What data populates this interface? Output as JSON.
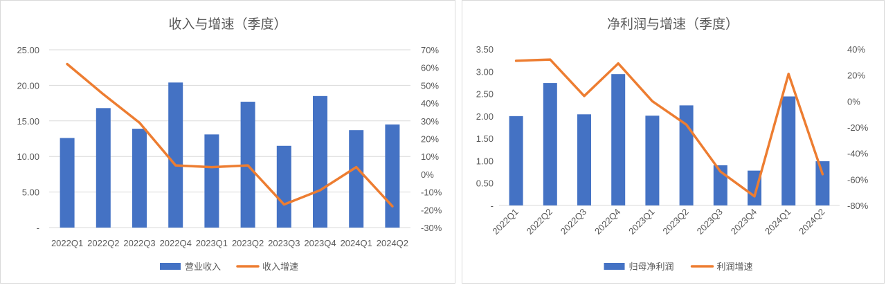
{
  "chart_data": [
    {
      "type": "bar",
      "title": "收入与增速（季度）",
      "categories": [
        "2022Q1",
        "2022Q2",
        "2022Q3",
        "2022Q4",
        "2023Q1",
        "2023Q2",
        "2023Q3",
        "2023Q4",
        "2024Q1",
        "2024Q2"
      ],
      "series": [
        {
          "name": "营业收入",
          "type": "bar",
          "axis": "left",
          "color": "#4472C4",
          "values": [
            12.6,
            16.8,
            13.9,
            20.4,
            13.1,
            17.7,
            11.5,
            18.5,
            13.7,
            14.5
          ]
        },
        {
          "name": "收入增速",
          "type": "line",
          "axis": "right",
          "color": "#ED7D31",
          "values": [
            62,
            45,
            29,
            5,
            4,
            5,
            -17,
            -9,
            4,
            -18
          ]
        }
      ],
      "y_left": {
        "min": 0,
        "max": 25,
        "step": 5,
        "tick_labels": [
          "-",
          "5.00",
          "10.00",
          "15.00",
          "20.00",
          "25.00"
        ]
      },
      "y_right": {
        "min": -30,
        "max": 70,
        "step": 10,
        "tick_labels": [
          "-30%",
          "-20%",
          "-10%",
          "0%",
          "10%",
          "20%",
          "30%",
          "40%",
          "50%",
          "60%",
          "70%"
        ]
      },
      "gridlines": true,
      "x_label_orientation": "horizontal",
      "legend_position": "bottom"
    },
    {
      "type": "bar",
      "title": "净利润与增速（季度）",
      "categories": [
        "2022Q1",
        "2022Q2",
        "2022Q3",
        "2022Q4",
        "2023Q1",
        "2023Q2",
        "2023Q3",
        "2023Q4",
        "2024Q1",
        "2024Q2"
      ],
      "series": [
        {
          "name": "归母净利润",
          "type": "bar",
          "axis": "left",
          "color": "#4472C4",
          "values": [
            2.0,
            2.74,
            2.04,
            2.94,
            2.01,
            2.24,
            0.9,
            0.78,
            2.44,
            0.99
          ]
        },
        {
          "name": "利润增速",
          "type": "line",
          "axis": "right",
          "color": "#ED7D31",
          "values": [
            31,
            32,
            4,
            29,
            0,
            -18,
            -54,
            -73,
            21,
            -56
          ]
        }
      ],
      "y_left": {
        "min": 0,
        "max": 3.5,
        "step": 0.5,
        "tick_labels": [
          "-",
          "0.50",
          "1.00",
          "1.50",
          "2.00",
          "2.50",
          "3.00",
          "3.50"
        ]
      },
      "y_right": {
        "min": -80,
        "max": 40,
        "step": 20,
        "tick_labels": [
          "-80%",
          "-60%",
          "-40%",
          "-20%",
          "0%",
          "20%",
          "40%"
        ]
      },
      "gridlines": false,
      "x_label_orientation": "rotated",
      "legend_position": "bottom"
    }
  ]
}
